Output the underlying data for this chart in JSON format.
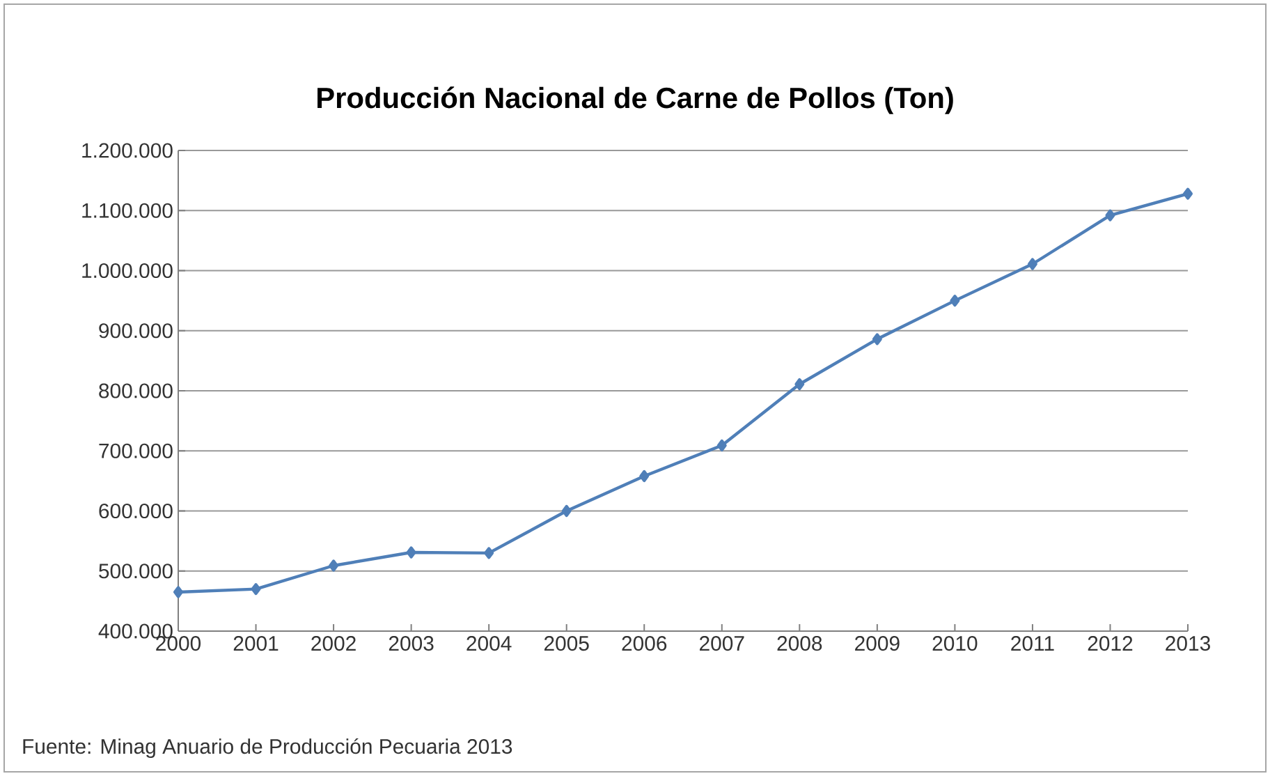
{
  "chart_data": {
    "type": "line",
    "title": "Producción Nacional de Carne de Pollos (Ton)",
    "categories": [
      "2000",
      "2001",
      "2002",
      "2003",
      "2004",
      "2005",
      "2006",
      "2007",
      "2008",
      "2009",
      "2010",
      "2011",
      "2012",
      "2013"
    ],
    "series": [
      {
        "color": "#4f7fb8",
        "values": [
          465000,
          470000,
          509000,
          531000,
          530000,
          600000,
          658000,
          709000,
          811000,
          886000,
          950000,
          1011000,
          1092000,
          1128000
        ]
      }
    ],
    "ylim": [
      400000,
      1200000
    ],
    "yticks": [
      {
        "value": 400000,
        "label": "400.000"
      },
      {
        "value": 500000,
        "label": "500.000"
      },
      {
        "value": 600000,
        "label": "600.000"
      },
      {
        "value": 700000,
        "label": "700.000"
      },
      {
        "value": 800000,
        "label": "800.000"
      },
      {
        "value": 900000,
        "label": "900.000"
      },
      {
        "value": 1000000,
        "label": "1.000.000"
      },
      {
        "value": 1100000,
        "label": "1.100.000"
      },
      {
        "value": 1200000,
        "label": "1.200.000"
      }
    ],
    "grid": "y",
    "marker": "diamond",
    "line_style": "solid",
    "annotations": [
      "Fuente: Minag Anuario de Producción Pecuaria 2013"
    ]
  }
}
